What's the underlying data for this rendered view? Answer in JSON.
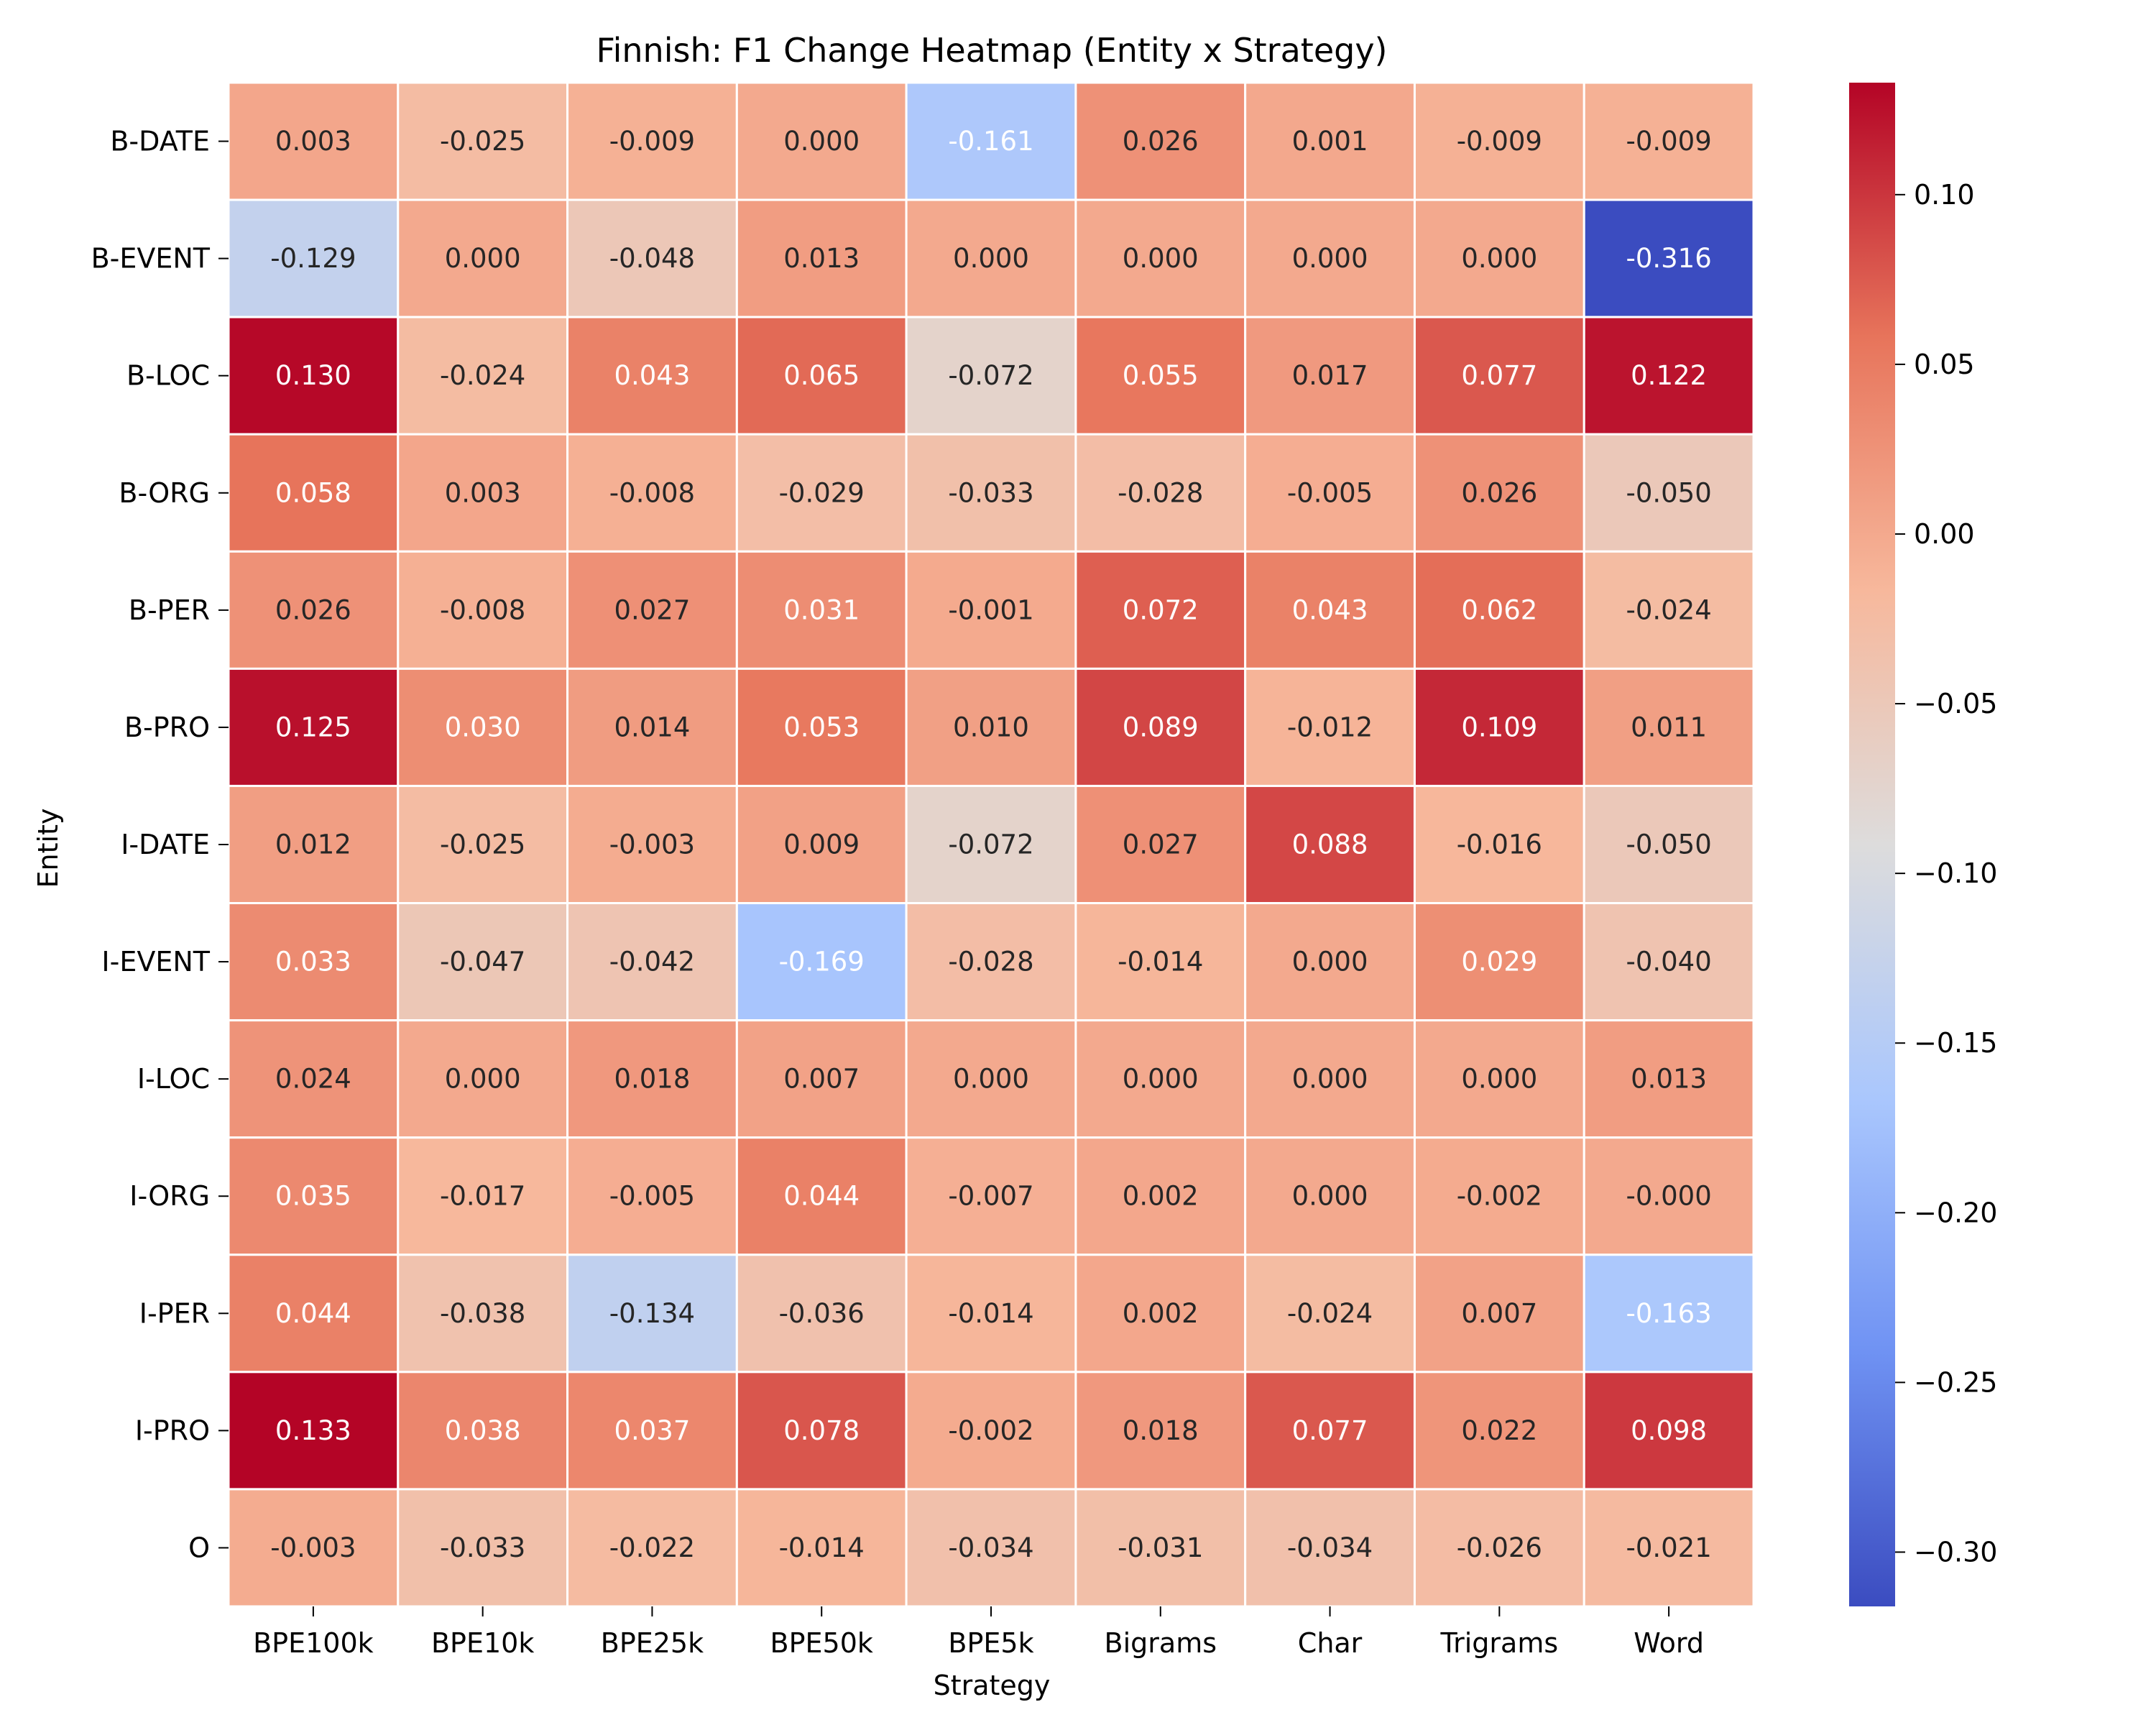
{
  "chart_data": {
    "type": "heatmap",
    "title": "Finnish: F1 Change Heatmap (Entity x Strategy)",
    "xlabel": "Strategy",
    "ylabel": "Entity",
    "x_categories": [
      "BPE100k",
      "BPE10k",
      "BPE25k",
      "BPE50k",
      "BPE5k",
      "Bigrams",
      "Char",
      "Trigrams",
      "Word"
    ],
    "y_categories": [
      "B-DATE",
      "B-EVENT",
      "B-LOC",
      "B-ORG",
      "B-PER",
      "B-PRO",
      "I-DATE",
      "I-EVENT",
      "I-LOC",
      "I-ORG",
      "I-PER",
      "I-PRO",
      "O"
    ],
    "values": [
      [
        0.003,
        -0.025,
        -0.009,
        0.0,
        -0.161,
        0.026,
        0.001,
        -0.009,
        -0.009
      ],
      [
        -0.129,
        0.0,
        -0.048,
        0.013,
        0.0,
        0.0,
        0.0,
        0.0,
        -0.316
      ],
      [
        0.13,
        -0.024,
        0.043,
        0.065,
        -0.072,
        0.055,
        0.017,
        0.077,
        0.122
      ],
      [
        0.058,
        0.003,
        -0.008,
        -0.029,
        -0.033,
        -0.028,
        -0.005,
        0.026,
        -0.05
      ],
      [
        0.026,
        -0.008,
        0.027,
        0.031,
        -0.001,
        0.072,
        0.043,
        0.062,
        -0.024
      ],
      [
        0.125,
        0.03,
        0.014,
        0.053,
        0.01,
        0.089,
        -0.012,
        0.109,
        0.011
      ],
      [
        0.012,
        -0.025,
        -0.003,
        0.009,
        -0.072,
        0.027,
        0.088,
        -0.016,
        -0.05
      ],
      [
        0.033,
        -0.047,
        -0.042,
        -0.169,
        -0.028,
        -0.014,
        0.0,
        0.029,
        -0.04
      ],
      [
        0.024,
        0.0,
        0.018,
        0.007,
        0.0,
        0.0,
        0.0,
        0.0,
        0.013
      ],
      [
        0.035,
        -0.017,
        -0.005,
        0.044,
        -0.007,
        0.002,
        0.0,
        -0.002,
        -0.0
      ],
      [
        0.044,
        -0.038,
        -0.134,
        -0.036,
        -0.014,
        0.002,
        -0.024,
        0.007,
        -0.163
      ],
      [
        0.133,
        0.038,
        0.037,
        0.078,
        -0.002,
        0.018,
        0.077,
        0.022,
        0.098
      ],
      [
        -0.003,
        -0.033,
        -0.022,
        -0.014,
        -0.034,
        -0.031,
        -0.034,
        -0.026,
        -0.021
      ]
    ],
    "cell_labels": [
      [
        "0.003",
        "-0.025",
        "-0.009",
        "0.000",
        "-0.161",
        "0.026",
        "0.001",
        "-0.009",
        "-0.009"
      ],
      [
        "-0.129",
        "0.000",
        "-0.048",
        "0.013",
        "0.000",
        "0.000",
        "0.000",
        "0.000",
        "-0.316"
      ],
      [
        "0.130",
        "-0.024",
        "0.043",
        "0.065",
        "-0.072",
        "0.055",
        "0.017",
        "0.077",
        "0.122"
      ],
      [
        "0.058",
        "0.003",
        "-0.008",
        "-0.029",
        "-0.033",
        "-0.028",
        "-0.005",
        "0.026",
        "-0.050"
      ],
      [
        "0.026",
        "-0.008",
        "0.027",
        "0.031",
        "-0.001",
        "0.072",
        "0.043",
        "0.062",
        "-0.024"
      ],
      [
        "0.125",
        "0.030",
        "0.014",
        "0.053",
        "0.010",
        "0.089",
        "-0.012",
        "0.109",
        "0.011"
      ],
      [
        "0.012",
        "-0.025",
        "-0.003",
        "0.009",
        "-0.072",
        "0.027",
        "0.088",
        "-0.016",
        "-0.050"
      ],
      [
        "0.033",
        "-0.047",
        "-0.042",
        "-0.169",
        "-0.028",
        "-0.014",
        "0.000",
        "0.029",
        "-0.040"
      ],
      [
        "0.024",
        "0.000",
        "0.018",
        "0.007",
        "0.000",
        "0.000",
        "0.000",
        "0.000",
        "0.013"
      ],
      [
        "0.035",
        "-0.017",
        "-0.005",
        "0.044",
        "-0.007",
        "0.002",
        "0.000",
        "-0.002",
        "-0.000"
      ],
      [
        "0.044",
        "-0.038",
        "-0.134",
        "-0.036",
        "-0.014",
        "0.002",
        "-0.024",
        "0.007",
        "-0.163"
      ],
      [
        "0.133",
        "0.038",
        "0.037",
        "0.078",
        "-0.002",
        "0.018",
        "0.077",
        "0.022",
        "0.098"
      ],
      [
        "-0.003",
        "-0.033",
        "-0.022",
        "-0.014",
        "-0.034",
        "-0.031",
        "-0.034",
        "-0.026",
        "-0.021"
      ]
    ],
    "colormap": "coolwarm",
    "colormap_stops": [
      "#3b4cc0",
      "#6f92f3",
      "#aac7fd",
      "#dddcdc",
      "#f7b89c",
      "#e7745b",
      "#b40426"
    ],
    "vmin": -0.316,
    "vmax": 0.133,
    "colorbar_ticks": [
      0.1,
      0.05,
      0.0,
      -0.05,
      -0.1,
      -0.15,
      -0.2,
      -0.25,
      -0.3
    ],
    "colorbar_tick_labels": [
      "0.10",
      "0.05",
      "0.00",
      "−0.05",
      "−0.10",
      "−0.15",
      "−0.20",
      "−0.25",
      "−0.30"
    ],
    "grid": false,
    "legend": "colorbar-right"
  }
}
